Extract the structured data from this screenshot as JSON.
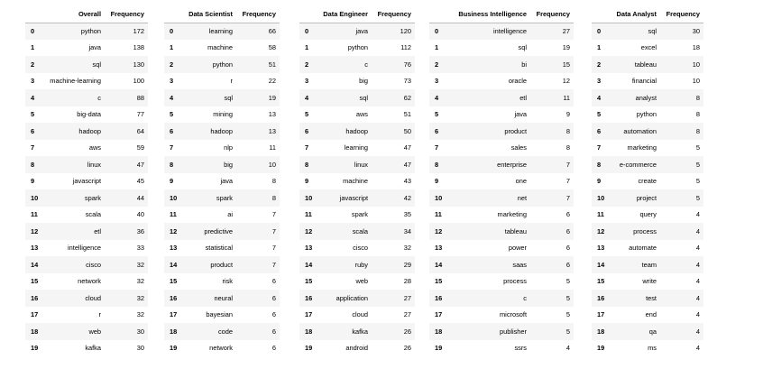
{
  "tables": [
    {
      "word_header": "Overall",
      "freq_header": "Frequency",
      "rows": [
        [
          "python",
          172
        ],
        [
          "java",
          138
        ],
        [
          "sql",
          130
        ],
        [
          "machine-learning",
          100
        ],
        [
          "c",
          88
        ],
        [
          "big-data",
          77
        ],
        [
          "hadoop",
          64
        ],
        [
          "aws",
          59
        ],
        [
          "linux",
          47
        ],
        [
          "javascript",
          45
        ],
        [
          "spark",
          44
        ],
        [
          "scala",
          40
        ],
        [
          "etl",
          36
        ],
        [
          "intelligence",
          33
        ],
        [
          "cisco",
          32
        ],
        [
          "network",
          32
        ],
        [
          "cloud",
          32
        ],
        [
          "r",
          32
        ],
        [
          "web",
          30
        ],
        [
          "kafka",
          30
        ]
      ]
    },
    {
      "word_header": "Data Scientist",
      "freq_header": "Frequency",
      "rows": [
        [
          "learning",
          66
        ],
        [
          "machine",
          58
        ],
        [
          "python",
          51
        ],
        [
          "r",
          22
        ],
        [
          "sql",
          19
        ],
        [
          "mining",
          13
        ],
        [
          "hadoop",
          13
        ],
        [
          "nlp",
          11
        ],
        [
          "big",
          10
        ],
        [
          "java",
          8
        ],
        [
          "spark",
          8
        ],
        [
          "ai",
          7
        ],
        [
          "predictive",
          7
        ],
        [
          "statistical",
          7
        ],
        [
          "product",
          7
        ],
        [
          "risk",
          6
        ],
        [
          "neural",
          6
        ],
        [
          "bayesian",
          6
        ],
        [
          "code",
          6
        ],
        [
          "network",
          6
        ]
      ]
    },
    {
      "word_header": "Data Engineer",
      "freq_header": "Frequency",
      "rows": [
        [
          "java",
          120
        ],
        [
          "python",
          112
        ],
        [
          "c",
          76
        ],
        [
          "big",
          73
        ],
        [
          "sql",
          62
        ],
        [
          "aws",
          51
        ],
        [
          "hadoop",
          50
        ],
        [
          "learning",
          47
        ],
        [
          "linux",
          47
        ],
        [
          "machine",
          43
        ],
        [
          "javascript",
          42
        ],
        [
          "spark",
          35
        ],
        [
          "scala",
          34
        ],
        [
          "cisco",
          32
        ],
        [
          "ruby",
          29
        ],
        [
          "web",
          28
        ],
        [
          "application",
          27
        ],
        [
          "cloud",
          27
        ],
        [
          "kafka",
          26
        ],
        [
          "android",
          26
        ]
      ]
    },
    {
      "word_header": "Business Intelligence",
      "freq_header": "Frequency",
      "rows": [
        [
          "intelligence",
          27
        ],
        [
          "sql",
          19
        ],
        [
          "bi",
          15
        ],
        [
          "oracle",
          12
        ],
        [
          "etl",
          11
        ],
        [
          "java",
          9
        ],
        [
          "product",
          8
        ],
        [
          "sales",
          8
        ],
        [
          "enterprise",
          7
        ],
        [
          "one",
          7
        ],
        [
          "net",
          7
        ],
        [
          "marketing",
          6
        ],
        [
          "tableau",
          6
        ],
        [
          "power",
          6
        ],
        [
          "saas",
          6
        ],
        [
          "process",
          5
        ],
        [
          "c",
          5
        ],
        [
          "microsoft",
          5
        ],
        [
          "publisher",
          5
        ],
        [
          "ssrs",
          4
        ]
      ]
    },
    {
      "word_header": "Data Analyst",
      "freq_header": "Frequency",
      "rows": [
        [
          "sql",
          30
        ],
        [
          "excel",
          18
        ],
        [
          "tableau",
          10
        ],
        [
          "financial",
          10
        ],
        [
          "analyst",
          8
        ],
        [
          "python",
          8
        ],
        [
          "automation",
          8
        ],
        [
          "marketing",
          5
        ],
        [
          "e-commerce",
          5
        ],
        [
          "create",
          5
        ],
        [
          "project",
          5
        ],
        [
          "query",
          4
        ],
        [
          "process",
          4
        ],
        [
          "automate",
          4
        ],
        [
          "team",
          4
        ],
        [
          "write",
          4
        ],
        [
          "test",
          4
        ],
        [
          "end",
          4
        ],
        [
          "qa",
          4
        ],
        [
          "ms",
          4
        ]
      ]
    }
  ]
}
